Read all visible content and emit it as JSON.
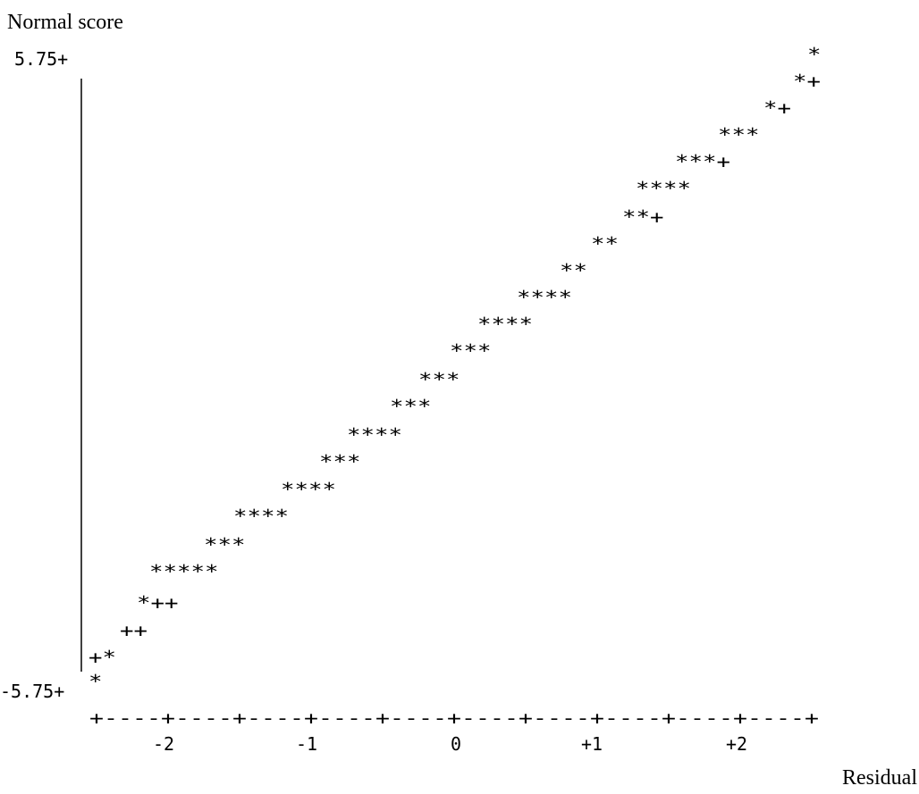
{
  "chart_data": {
    "type": "scatter",
    "ylabel": "Normal score",
    "xlabel": "Residual",
    "ytick_labels": {
      "top": "5.75+",
      "bottom": "-5.75+"
    },
    "xtick_labels": [
      "-2",
      "-1",
      "0",
      "+1",
      "+2"
    ],
    "x_axis_text": "+----+----+----+----+----+----+----+----+----+----+",
    "plot_rows": [
      "*",
      "*+",
      "*+",
      "***",
      "***+",
      "****",
      "**+",
      "**",
      "**",
      "****",
      "****",
      "***",
      "***",
      "***",
      "****",
      "***",
      "****",
      "****",
      "***",
      "*****",
      "*++",
      "++",
      "+*",
      "*"
    ]
  }
}
